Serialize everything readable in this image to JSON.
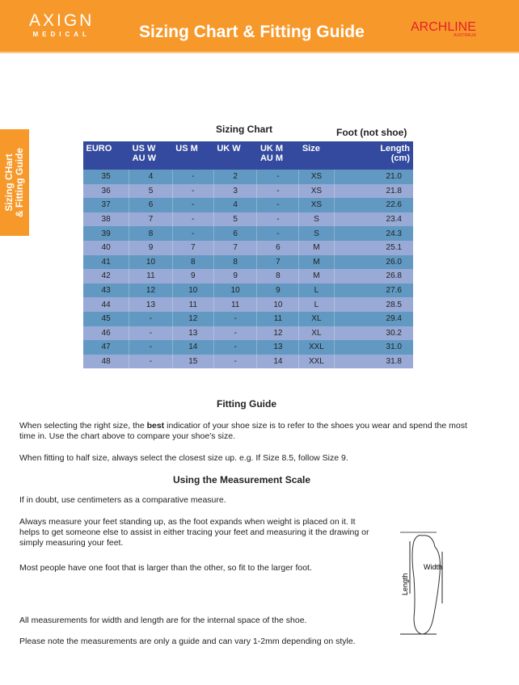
{
  "header": {
    "logo_main": "AXIGN",
    "logo_sub": "MEDICAL",
    "title": "Sizing Chart & Fitting Guide",
    "brand": "ARCHLINE",
    "brand_sub": "AUSTRALIA",
    "color": "#f7992a"
  },
  "side_tab": {
    "line1": "Sizing CHart",
    "line2": "& Fitting Guide"
  },
  "chart": {
    "title": "Sizing Chart",
    "note": "Foot (not shoe)",
    "headers": [
      [
        "EURO",
        ""
      ],
      [
        "US W",
        "AU W"
      ],
      [
        "US M",
        ""
      ],
      [
        "UK W",
        ""
      ],
      [
        "UK M",
        "AU M"
      ],
      [
        "Size",
        ""
      ],
      [
        "Length",
        "(cm)"
      ]
    ],
    "rows": [
      [
        "35",
        "4",
        "-",
        "2",
        "-",
        "XS",
        "21.0"
      ],
      [
        "36",
        "5",
        "-",
        "3",
        "-",
        "XS",
        "21.8"
      ],
      [
        "37",
        "6",
        "-",
        "4",
        "-",
        "XS",
        "22.6"
      ],
      [
        "38",
        "7",
        "-",
        "5",
        "-",
        "S",
        "23.4"
      ],
      [
        "39",
        "8",
        "-",
        "6",
        "-",
        "S",
        "24.3"
      ],
      [
        "40",
        "9",
        "7",
        "7",
        "6",
        "M",
        "25.1"
      ],
      [
        "41",
        "10",
        "8",
        "8",
        "7",
        "M",
        "26.0"
      ],
      [
        "42",
        "11",
        "9",
        "9",
        "8",
        "M",
        "26.8"
      ],
      [
        "43",
        "12",
        "10",
        "10",
        "9",
        "L",
        "27.6"
      ],
      [
        "44",
        "13",
        "11",
        "11",
        "10",
        "L",
        "28.5"
      ],
      [
        "45",
        "-",
        "12",
        "-",
        "11",
        "XL",
        "29.4"
      ],
      [
        "46",
        "-",
        "13",
        "-",
        "12",
        "XL",
        "30.2"
      ],
      [
        "47",
        "-",
        "14",
        "-",
        "13",
        "XXL",
        "31.0"
      ],
      [
        "48",
        "-",
        "15",
        "-",
        "14",
        "XXL",
        "31.8"
      ]
    ]
  },
  "fitting": {
    "title": "Fitting Guide",
    "p1a": "When selecting the right size, the ",
    "p1b": "best",
    "p1c": " indicatior of your shoe size is to refer to the shoes you wear and spend the most time in. Use the chart above to compare your shoe's size.",
    "p2": "When fitting to half size, always select the closest size up. e.g. If Size 8.5, follow Size 9."
  },
  "measure": {
    "title": "Using the Measurement Scale",
    "p1": "If in doubt, use centimeters as a comparative measure.",
    "p2": "Always measure your feet standing up, as the foot expands when weight is placed on it. It helps to get someone else to assist in either tracing your feet and measuring it the drawing or simply measuring your feet.",
    "p3": "Most people have one foot that is larger than the other, so fit to the larger foot.",
    "p4": "All measurements for width and length are for the internal space of the shoe.",
    "p5": "Please note the measurements are only a guide and can vary 1-2mm depending on style.",
    "diagram_length": "Length",
    "diagram_width": "Width"
  }
}
